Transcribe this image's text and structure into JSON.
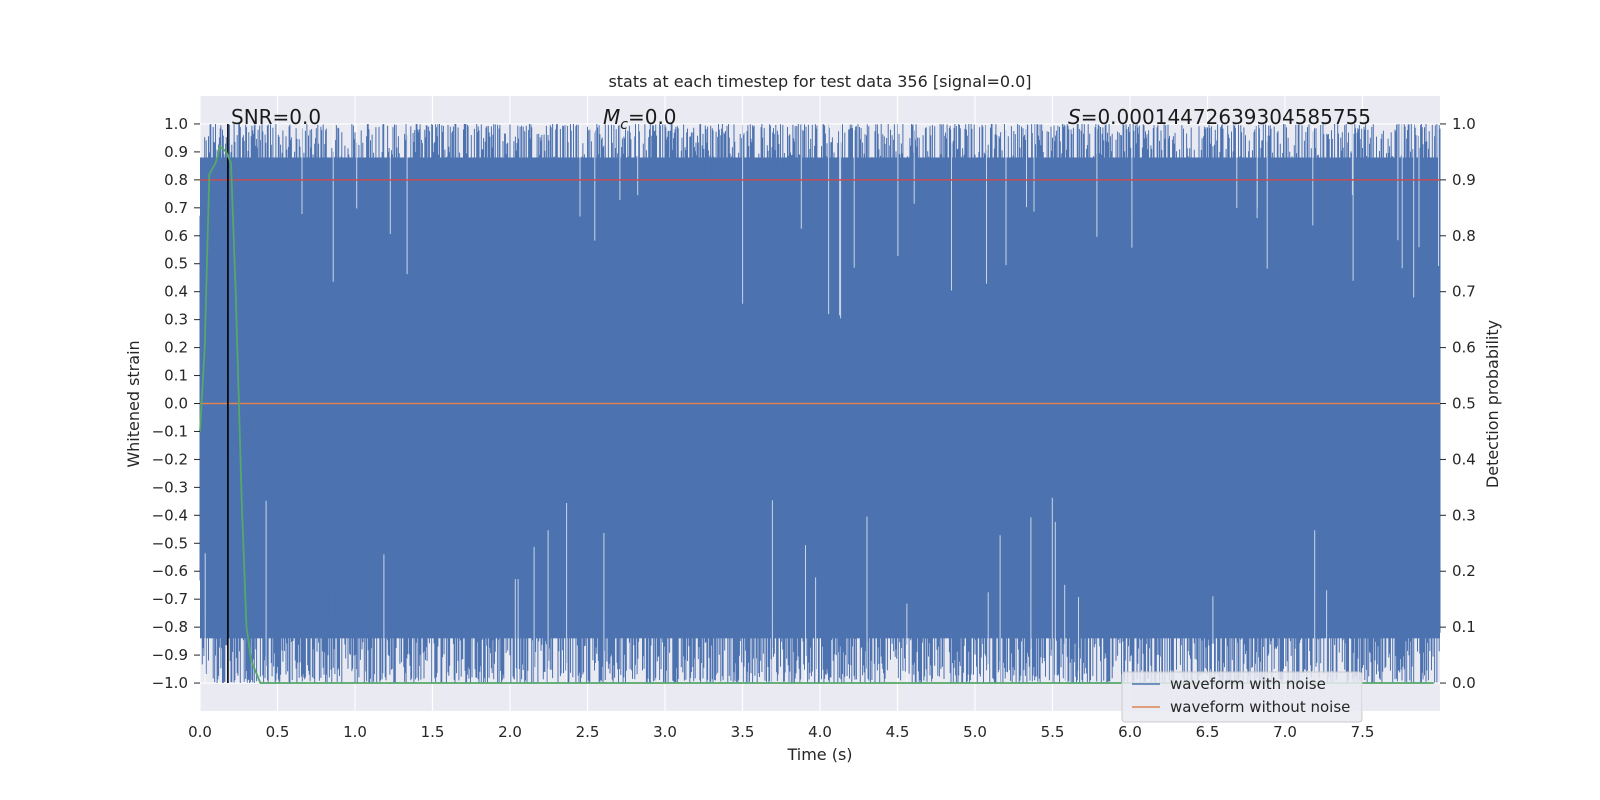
{
  "chart_data": {
    "type": "line",
    "title": "stats at each timestep for test data 356 [signal=0.0]",
    "xlabel": "Time (s)",
    "ylabel": "Whitened strain",
    "ylabel_right": "Detection probability",
    "xlim": [
      0.0,
      8.0
    ],
    "ylim": [
      -1.1,
      1.1
    ],
    "ylim_right": [
      -0.05,
      1.05
    ],
    "x_ticks": [
      "0.0",
      "0.5",
      "1.0",
      "1.5",
      "2.0",
      "2.5",
      "3.0",
      "3.5",
      "4.0",
      "4.5",
      "5.0",
      "5.5",
      "6.0",
      "6.5",
      "7.0",
      "7.5"
    ],
    "y_ticks": [
      "1.0",
      "0.9",
      "0.8",
      "0.7",
      "0.6",
      "0.5",
      "0.4",
      "0.3",
      "0.2",
      "0.1",
      "0.0",
      "−0.1",
      "−0.2",
      "−0.3",
      "−0.4",
      "−0.5",
      "−0.6",
      "−0.7",
      "−0.8",
      "−0.9",
      "−1.0"
    ],
    "y_ticks_right": [
      "1.0",
      "0.9",
      "0.8",
      "0.7",
      "0.6",
      "0.5",
      "0.4",
      "0.3",
      "0.2",
      "0.1",
      "0.0"
    ],
    "grid": true,
    "legend_position": "bottom-right",
    "annotations": {
      "snr_label": "SNR=0.0",
      "mc_symbol": "M",
      "mc_subscript": "c",
      "mc_value": "=0.0",
      "s_symbol": "S",
      "s_value": "=0.00014472639304585755"
    },
    "marker_time": 0.18,
    "series": [
      {
        "name": "waveform with noise",
        "color": "#4c72b0",
        "axis": "left",
        "description": "dense noise filling approx -1.0 to 1.0"
      },
      {
        "name": "waveform without noise",
        "color": "#dd8452",
        "axis": "left",
        "constant": 0.0
      },
      {
        "color": "#c44e52",
        "axis": "left",
        "constant": 0.8
      },
      {
        "color": "#55a868",
        "axis": "right",
        "x": [
          0.0,
          0.03,
          0.06,
          0.1,
          0.13,
          0.17,
          0.2,
          0.23,
          0.27,
          0.3,
          0.33,
          0.36,
          0.39,
          0.42,
          1.0,
          2.0,
          3.0,
          4.0,
          5.0,
          6.0,
          7.0,
          7.96
        ],
        "y": [
          0.45,
          0.6,
          0.91,
          0.93,
          0.96,
          0.95,
          0.93,
          0.7,
          0.32,
          0.1,
          0.04,
          0.02,
          0.0,
          0.0,
          0.0,
          0.0,
          0.0,
          0.0,
          0.0,
          0.0,
          0.0,
          0.0
        ]
      }
    ],
    "colors": {
      "plot_background": "#eaeaf2",
      "grid": "#ffffff",
      "marker_line": "#000000"
    }
  }
}
